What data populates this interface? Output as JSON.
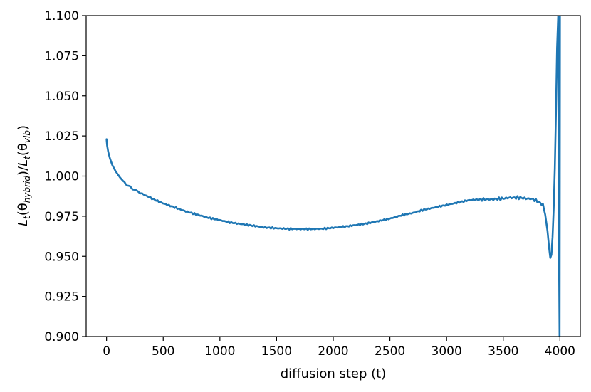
{
  "chart_data": {
    "type": "line",
    "xlabel": "diffusion step (t)",
    "ylabel": {
      "main": "L",
      "sub1": "t",
      "open1": "(θ",
      "sub2": "hybrid",
      "close1": ")/",
      "main2": "L",
      "sub3": "t",
      "open2": "(θ",
      "sub4": "vlb",
      "close2": ")"
    },
    "xlim": [
      -180,
      4180
    ],
    "ylim": [
      0.9,
      1.1
    ],
    "xticks": [
      0,
      500,
      1000,
      1500,
      2000,
      2500,
      3000,
      3500,
      4000
    ],
    "yticks": [
      0.9,
      0.925,
      0.95,
      0.975,
      1.0,
      1.025,
      1.05,
      1.075,
      1.1
    ],
    "xtick_labels": [
      "0",
      "500",
      "1000",
      "1500",
      "2000",
      "2500",
      "3000",
      "3500",
      "4000"
    ],
    "ytick_labels": [
      "0.900",
      "0.925",
      "0.950",
      "0.975",
      "1.000",
      "1.025",
      "1.050",
      "1.075",
      "1.100"
    ],
    "grid": false,
    "legend": "none",
    "series_color": "#1f77b4",
    "series": [
      {
        "x": [
          0,
          5,
          15,
          30,
          50,
          80,
          120,
          170,
          230,
          300,
          400,
          500,
          600,
          700,
          800,
          900,
          1000,
          1100,
          1200,
          1300,
          1400,
          1500,
          1600,
          1700,
          1800,
          1900,
          2000,
          2100,
          2200,
          2300,
          2400,
          2500,
          2600,
          2700,
          2800,
          2900,
          3000,
          3100,
          3200,
          3300,
          3400,
          3500,
          3550,
          3600,
          3650,
          3700,
          3750,
          3800,
          3850,
          3870,
          3890,
          3905,
          3915,
          3925,
          3935,
          3945,
          3955,
          3965,
          3975,
          3985,
          3992,
          3997,
          4000
        ],
        "values": [
          1.023,
          1.019,
          1.015,
          1.011,
          1.007,
          1.003,
          0.999,
          0.995,
          0.992,
          0.9895,
          0.986,
          0.983,
          0.9805,
          0.978,
          0.976,
          0.974,
          0.9725,
          0.971,
          0.97,
          0.969,
          0.968,
          0.9675,
          0.9672,
          0.967,
          0.967,
          0.9672,
          0.9678,
          0.9685,
          0.9695,
          0.9705,
          0.972,
          0.9735,
          0.9755,
          0.977,
          0.979,
          0.9805,
          0.982,
          0.9835,
          0.985,
          0.9855,
          0.9855,
          0.986,
          0.9865,
          0.9865,
          0.9865,
          0.986,
          0.9858,
          0.9845,
          0.982,
          0.976,
          0.966,
          0.955,
          0.949,
          0.951,
          0.962,
          0.98,
          1.005,
          1.04,
          1.08,
          1.1,
          0.95,
          0.9,
          1.1
        ]
      }
    ]
  }
}
